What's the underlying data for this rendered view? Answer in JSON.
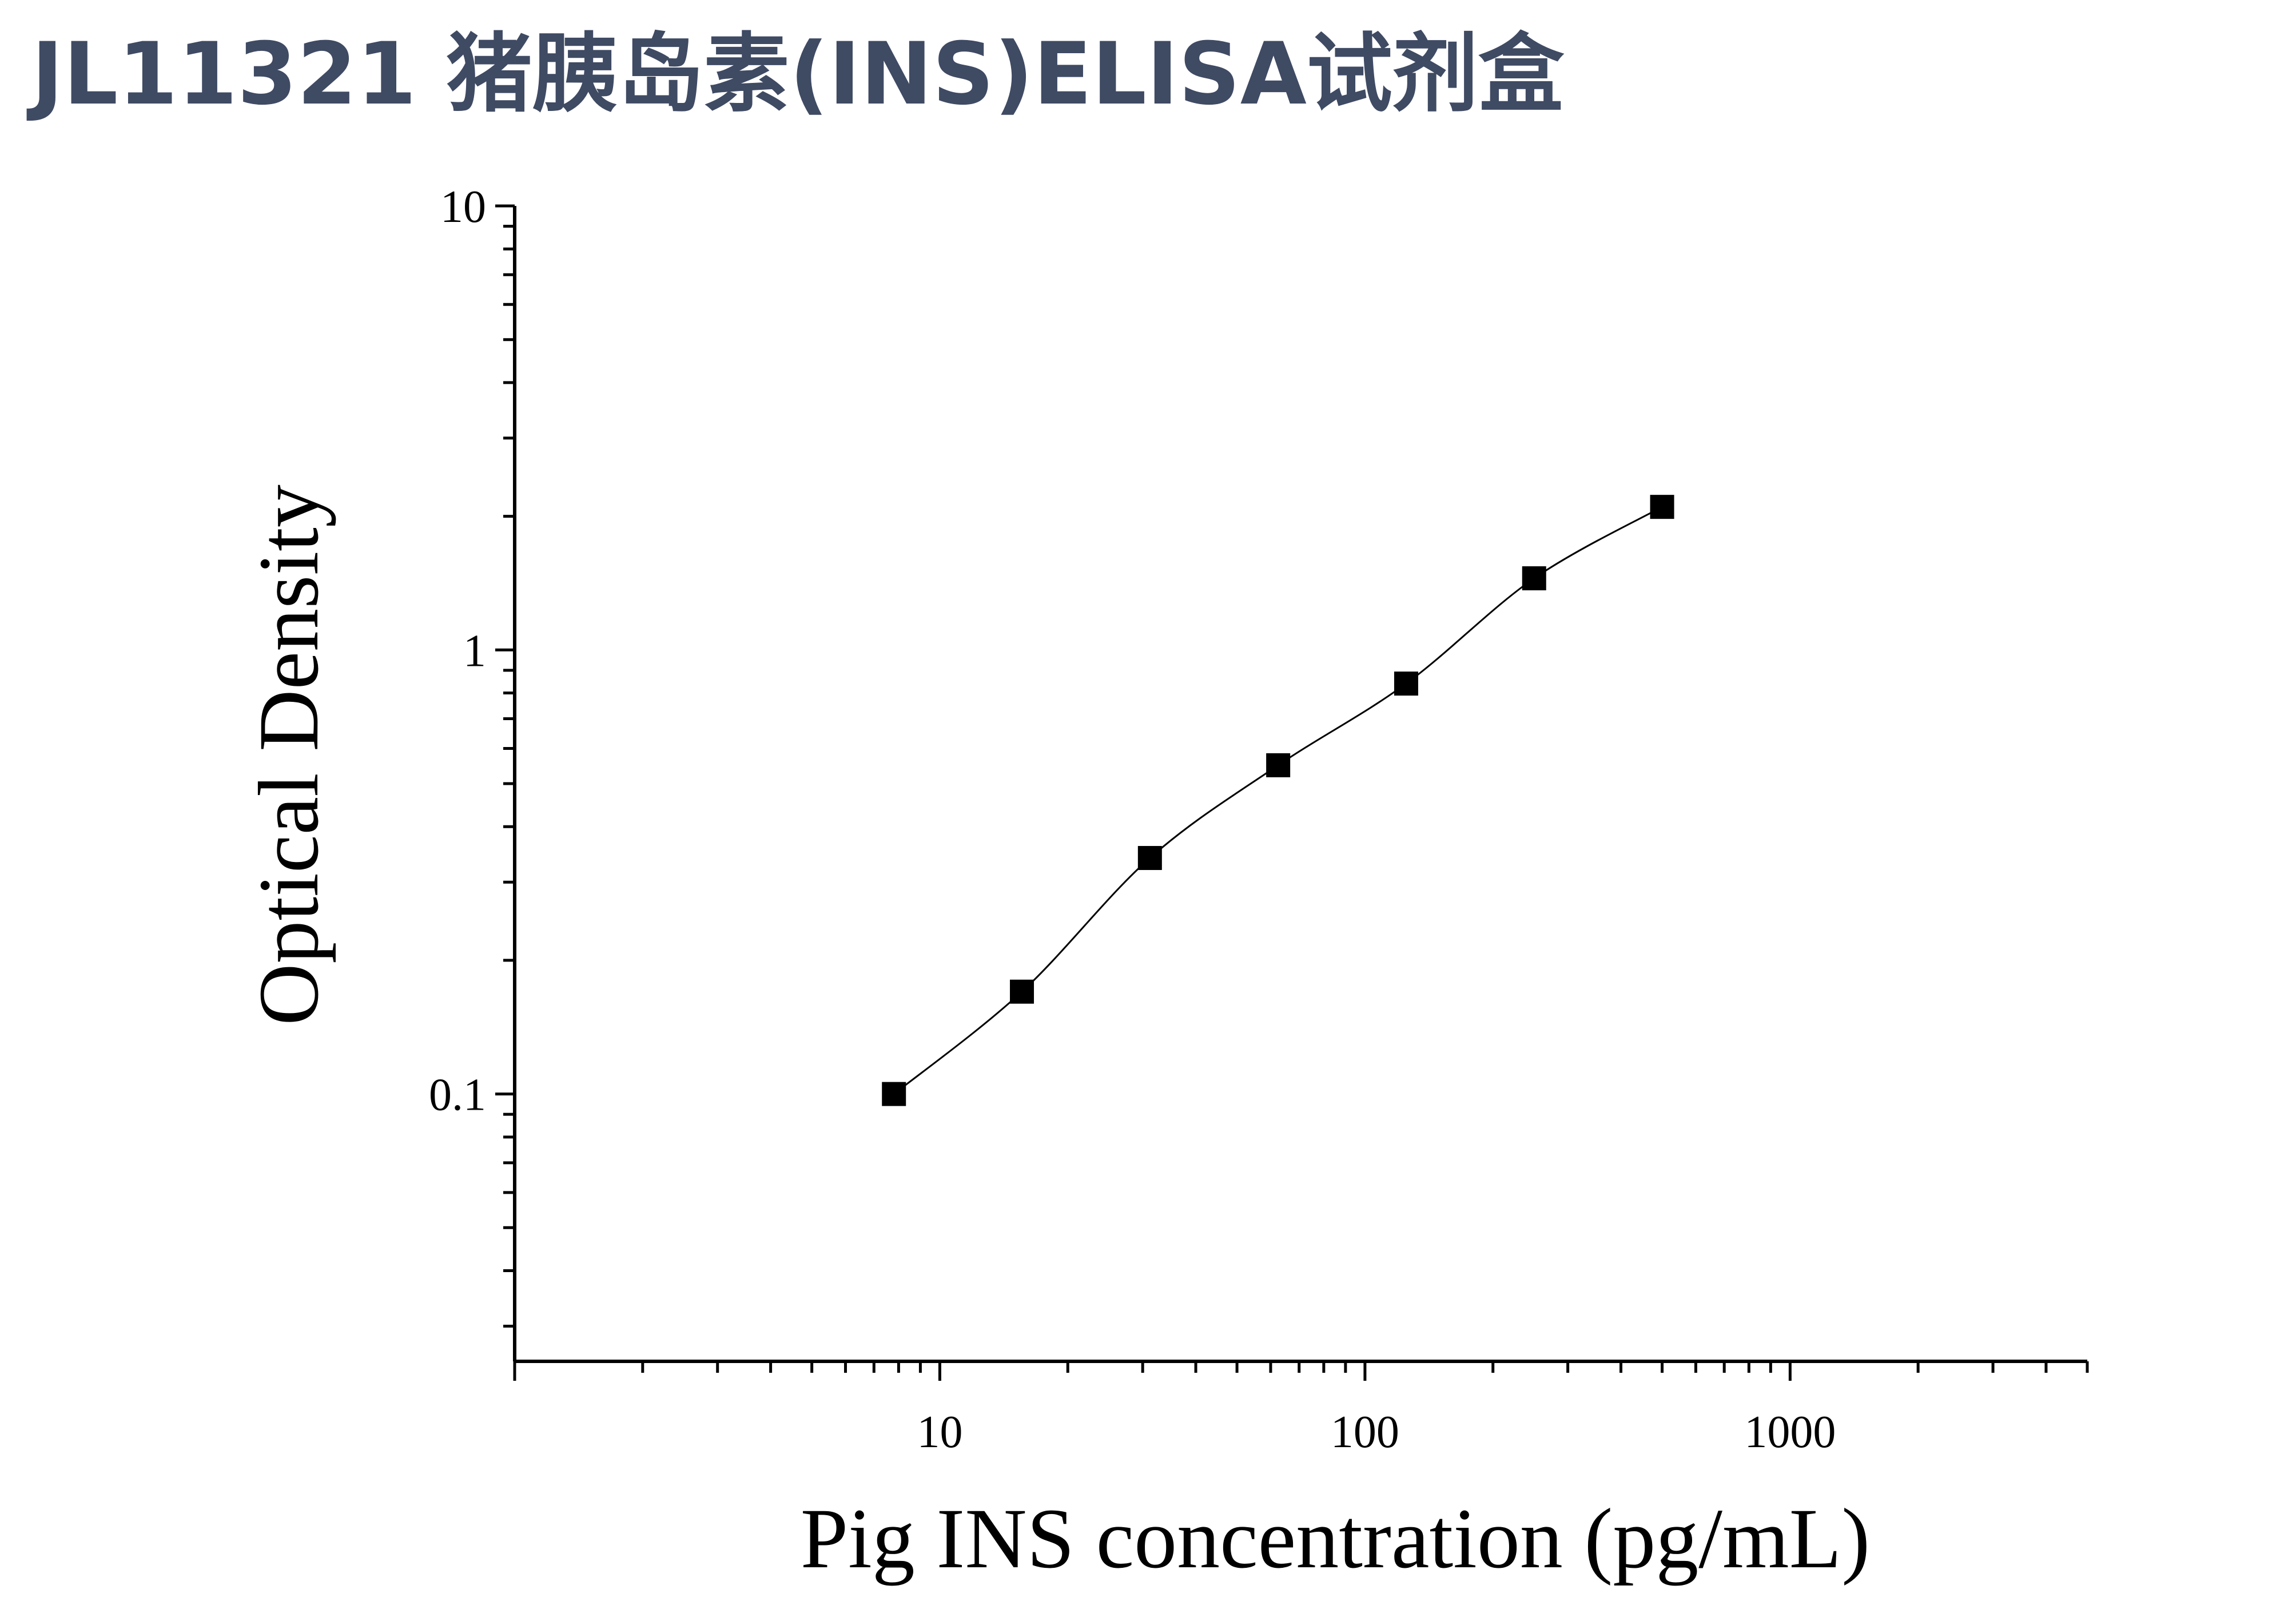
{
  "title": "JL11321 猪胰岛素(INS)ELISA试剂盒",
  "chart_data": {
    "type": "scatter",
    "xlabel": "Pig INS concentration (pg/mL)",
    "ylabel": "Optical Density",
    "x_scale": "log",
    "y_scale": "log",
    "xlim": [
      1,
      5000
    ],
    "ylim": [
      0.025,
      10
    ],
    "x_tick_labels": [
      "10",
      "100",
      "1000"
    ],
    "y_tick_labels": [
      "0.1",
      "1",
      "10"
    ],
    "grid": false,
    "series": [
      {
        "x": [
          7.8,
          15.6,
          31.2,
          62.5,
          125,
          250,
          500
        ],
        "y": [
          0.1,
          0.17,
          0.34,
          0.55,
          0.84,
          1.45,
          2.1
        ],
        "marker": "square",
        "fit_line": true
      }
    ],
    "colors": {
      "marker": "#000000",
      "line": "#000000",
      "title": "#3f4a63"
    }
  }
}
